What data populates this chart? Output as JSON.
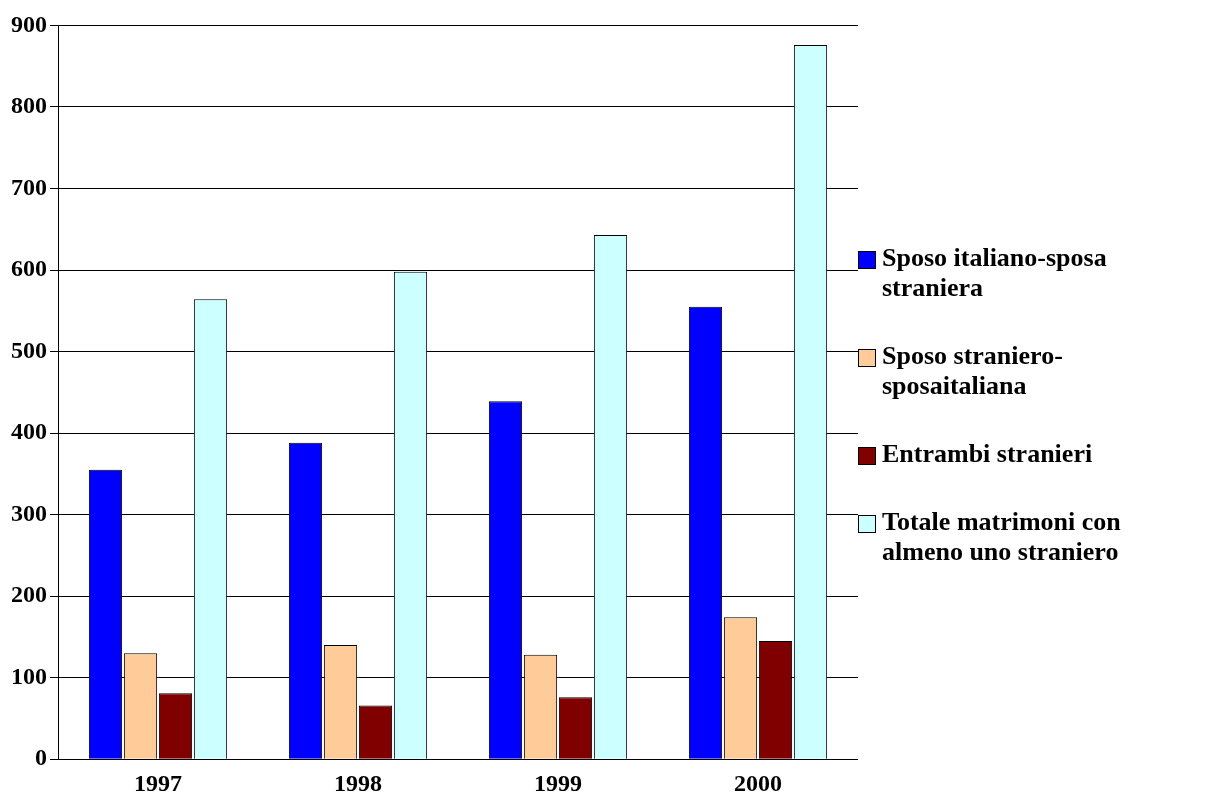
{
  "chart_data": {
    "type": "bar",
    "categories": [
      "1997",
      "1998",
      "1999",
      "2000"
    ],
    "series": [
      {
        "name": "Sposo italiano-sposa straniera",
        "color": "#0000ff",
        "values": [
          355,
          388,
          439,
          555
        ]
      },
      {
        "name": "Sposo straniero-sposaitaliana",
        "color": "#ffcc99",
        "values": [
          130,
          140,
          128,
          174
        ]
      },
      {
        "name": "Entrambi stranieri",
        "color": "#800000",
        "values": [
          81,
          66,
          76,
          145
        ]
      },
      {
        "name": "Totale matrimoni con almeno uno straniero",
        "color": "#ccffff",
        "values": [
          564,
          598,
          643,
          876
        ]
      }
    ],
    "ylim": [
      0,
      900
    ],
    "yticks": [
      0,
      100,
      200,
      300,
      400,
      500,
      600,
      700,
      800,
      900
    ],
    "grid": "y",
    "legend": "right"
  }
}
